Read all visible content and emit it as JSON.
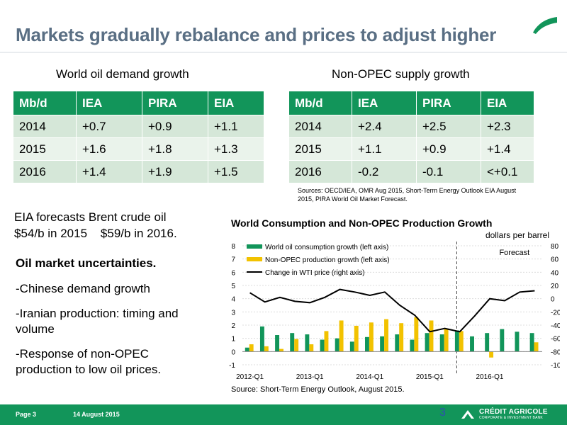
{
  "header": {
    "title": "Markets gradually rebalance and prices to adjust higher"
  },
  "demand": {
    "caption": "World oil demand growth",
    "headers": [
      "Mb/d",
      "IEA",
      "PIRA",
      "EIA"
    ],
    "rows": [
      [
        "2014",
        "+0.7",
        "+0.9",
        "+1.1"
      ],
      [
        "2015",
        "+1.6",
        "+1.8",
        "+1.3"
      ],
      [
        "2016",
        "+1.4",
        "+1.9",
        "+1.5"
      ]
    ]
  },
  "supply": {
    "caption": "Non-OPEC supply growth",
    "headers": [
      "Mb/d",
      "IEA",
      "PIRA",
      "EIA"
    ],
    "rows": [
      [
        "2014",
        "+2.4",
        "+2.5",
        "+2.3"
      ],
      [
        "2015",
        "+1.1",
        "+0.9",
        "+1.4"
      ],
      [
        "2016",
        "-0.2",
        "-0.1",
        "<+0.1"
      ]
    ]
  },
  "sources": "Sources: OECD/IEA, OMR Aug 2015, Short-Term Energy Outlook EIA August 2015, PIRA World Oil Market Forecast.",
  "forecast": {
    "line1": "EIA forecasts Brent crude oil",
    "line2": "$54/b in 2015    $59/b in 2016."
  },
  "uncertainties": {
    "title": "Oil market uncertainties.",
    "item1": "-Chinese demand growth",
    "item2a": "-Iranian production: timing and",
    "item2b": "volume",
    "item3a": "-Response of non-OPEC",
    "item3b": "production to low oil prices."
  },
  "chart_src": "Source: Short-Term Energy Outlook, August 2015.",
  "chart_data": {
    "type": "bar",
    "title": "World Consumption and Non-OPEC Production Growth",
    "y2label": "dollars per barrel",
    "forecast_label": "Forecast",
    "categories": [
      "2012-Q1",
      "2012-Q2",
      "2012-Q3",
      "2012-Q4",
      "2013-Q1",
      "2013-Q2",
      "2013-Q3",
      "2013-Q4",
      "2014-Q1",
      "2014-Q2",
      "2014-Q3",
      "2014-Q4",
      "2015-Q1",
      "2015-Q2",
      "2015-Q3",
      "2015-Q4",
      "2016-Q1",
      "2016-Q2",
      "2016-Q3",
      "2016-Q4"
    ],
    "x_tick_labels": [
      "2012-Q1",
      "2013-Q1",
      "2014-Q1",
      "2015-Q1",
      "2016-Q1"
    ],
    "ylim": [
      -1,
      8
    ],
    "y_ticks": [
      -1,
      0,
      1,
      2,
      3,
      4,
      5,
      6,
      7,
      8
    ],
    "y2lim": [
      -100,
      80
    ],
    "y2_ticks": [
      -100,
      -80,
      -60,
      -40,
      -20,
      0,
      20,
      40,
      60,
      80
    ],
    "forecast_start_index": 14,
    "series": [
      {
        "name": "World oil consumption growth (left axis)",
        "axis": "left",
        "kind": "bar",
        "color": "#12955a",
        "values": [
          0.3,
          1.9,
          1.25,
          1.4,
          1.3,
          0.9,
          1.0,
          0.75,
          1.1,
          1.15,
          1.3,
          0.9,
          1.4,
          1.3,
          1.6,
          1.15,
          1.4,
          1.7,
          1.5,
          1.4
        ]
      },
      {
        "name": "Non-OPEC production growth (left axis)",
        "axis": "left",
        "kind": "bar",
        "color": "#f2c200",
        "values": [
          0.55,
          0.4,
          0.2,
          0.95,
          0.55,
          1.55,
          2.35,
          1.95,
          2.2,
          2.45,
          2.15,
          2.6,
          2.35,
          1.75,
          1.55,
          0.0,
          -0.45,
          0.0,
          0.0,
          0.7
        ]
      },
      {
        "name": "Change in WTI price (right axis)",
        "axis": "right",
        "kind": "line",
        "color": "#000000",
        "values": [
          9,
          -5,
          2,
          -4,
          -6,
          2,
          14,
          10,
          5,
          10,
          -10,
          -25,
          -50,
          -45,
          -50,
          -26,
          0,
          -3,
          10,
          12
        ]
      }
    ]
  },
  "footer": {
    "page": "Page 3",
    "date": "14 August 2015",
    "num": "3",
    "logo1": "CRÉDIT AGRICOLE",
    "logo2": "CORPORATE & INVESTMENT BANK"
  },
  "colors": {
    "accent": "#12955a",
    "title": "#5a6f84",
    "bar_yellow": "#f2c200"
  }
}
